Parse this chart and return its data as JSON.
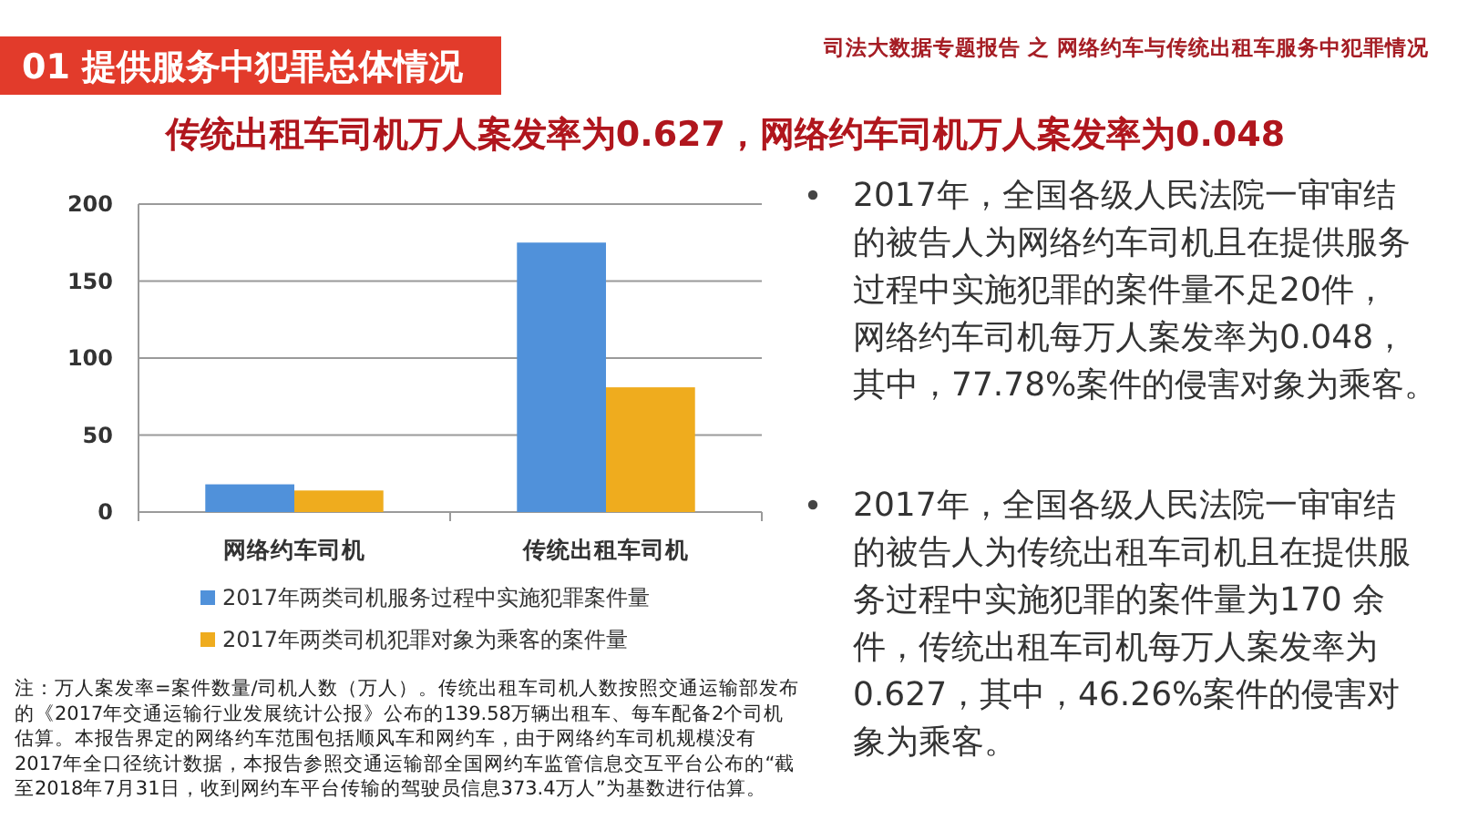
{
  "chart_data": {
    "type": "bar",
    "title": "传统出租车司机万人案发率为0.627，网络约车司机万人案发率为0.048",
    "categories": [
      "网络约车司机",
      "传统出租车司机"
    ],
    "series": [
      {
        "name": "2017年两类司机服务过程中实施犯罪案件量",
        "color": "#5091da",
        "values": [
          18,
          175
        ]
      },
      {
        "name": "2017年两类司机犯罪对象为乘客的案件量",
        "color": "#efac1e",
        "values": [
          14,
          81
        ]
      }
    ],
    "ylim": [
      0,
      200
    ],
    "yticks": [
      0,
      50,
      100,
      150,
      200
    ],
    "grid": "y",
    "legend": "bottom",
    "annotations": [
      "01 提供服务中犯罪总体情况",
      "司法大数据专题报告 之 网络约车与传统出租车服务中犯罪情况",
      "2017年，全国各级人民法院一审审结的被告人为网络约车司机且在提供服务过程中实施犯罪的案件量不足20件，网络约车司机每万人案发率为0.048，其中，77.78%案件的侵害对象为乘客。",
      "2017年，全国各级人民法院一审审结的被告人为传统出租车司机且在提供服务过程中实施犯罪的案件量为170 余件，传统出租车司机每万人案发率为0.627，其中，46.26%案件的侵害对象为乘客。",
      "注：万人案发率=案件数量/司机人数（万人）。传统出租车司机人数按照交通运输部发布的《2017年交通运输行业发展统计公报》公布的139.58万辆出租车、每车配备2个司机估算。本报告界定的网络约车范围包括顺风车和网约车，由于网络约车司机规模没有2017年全口径统计数据，本报告参照交通运输部全国网约车监管信息交互平台公布的“截至2018年7月31日，收到网约车平台传输的驾驶员信息373.4万人”为基数进行估算。"
    ]
  }
}
